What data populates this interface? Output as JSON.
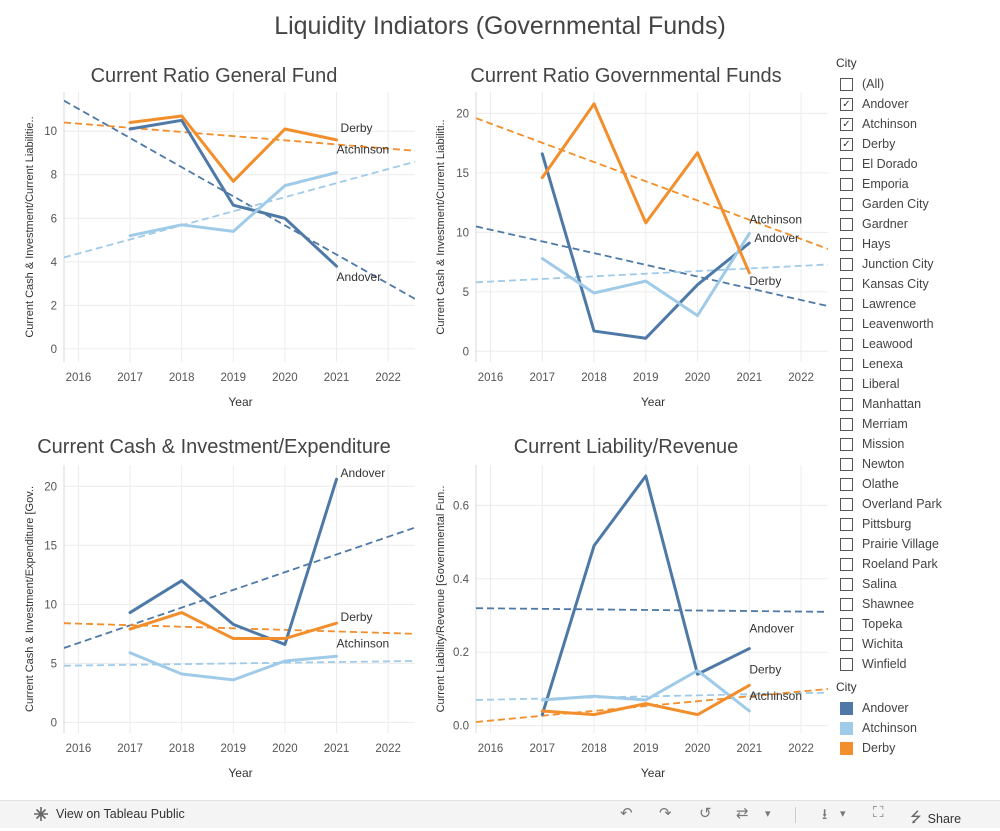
{
  "dashboard": {
    "title": "Liquidity Indiators (Governmental Funds)"
  },
  "colors": {
    "Andover": "#4e79a7",
    "Atchinson": "#a0cbe8",
    "Derby": "#f28e2b"
  },
  "chart_data": [
    {
      "type": "line",
      "title": "Current Ratio General Fund",
      "xlabel": "Year",
      "ylabel": "Current Cash & Investment/Current Liabilitie..",
      "x": [
        2017,
        2018,
        2019,
        2020,
        2021
      ],
      "xticks": [
        "2016",
        "2017",
        "2018",
        "2019",
        "2020",
        "2021",
        "2022"
      ],
      "yticks": [
        "0",
        "2",
        "4",
        "6",
        "8",
        "10"
      ],
      "ylim": [
        -0.6,
        11.8
      ],
      "series": [
        {
          "name": "Andover",
          "values": [
            10.1,
            10.5,
            6.6,
            6.0,
            3.8
          ],
          "trend": [
            11.4,
            2.3
          ]
        },
        {
          "name": "Atchinson",
          "values": [
            5.2,
            5.7,
            5.4,
            7.5,
            8.1
          ],
          "trend": [
            4.2,
            8.6
          ]
        },
        {
          "name": "Derby",
          "values": [
            10.4,
            10.7,
            7.7,
            10.1,
            9.6
          ],
          "trend": [
            10.4,
            9.1
          ]
        }
      ],
      "labels": [
        {
          "series": "Derby",
          "text": "Derby",
          "x": 2021,
          "y": 9.6,
          "dx": 4,
          "dy": -8
        },
        {
          "series": "Atchinson",
          "text": "Atchinson",
          "x": 2021,
          "y": 8.1,
          "dx": 0,
          "dy": -19
        },
        {
          "series": "Andover",
          "text": "Andover",
          "x": 2021,
          "y": 3.8,
          "dx": 0,
          "dy": 15
        }
      ]
    },
    {
      "type": "line",
      "title": "Current Ratio Governmental Funds",
      "xlabel": "Year",
      "ylabel": "Current Cash & Investment/Current Liabiliti..",
      "x": [
        2017,
        2018,
        2019,
        2020,
        2021
      ],
      "xticks": [
        "2016",
        "2017",
        "2018",
        "2019",
        "2020",
        "2021",
        "2022"
      ],
      "yticks": [
        "0",
        "5",
        "10",
        "15",
        "20"
      ],
      "ylim": [
        -0.9,
        21.8
      ],
      "series": [
        {
          "name": "Andover",
          "values": [
            16.6,
            1.7,
            1.1,
            5.6,
            9.1
          ],
          "trend": [
            10.5,
            3.8
          ]
        },
        {
          "name": "Atchinson",
          "values": [
            7.8,
            4.9,
            5.9,
            3.0,
            9.9
          ],
          "trend": [
            5.8,
            7.3
          ]
        },
        {
          "name": "Derby",
          "values": [
            14.6,
            20.8,
            10.8,
            16.7,
            6.6
          ],
          "trend": [
            19.6,
            8.6
          ]
        }
      ],
      "labels": [
        {
          "series": "Atchinson",
          "text": "Atchinson",
          "x": 2021,
          "y": 9.9,
          "dx": 0,
          "dy": -10
        },
        {
          "series": "Andover",
          "text": "Andover",
          "x": 2021,
          "y": 9.1,
          "dx": 5,
          "dy": -1
        },
        {
          "series": "Derby",
          "text": "Derby",
          "x": 2021,
          "y": 6.6,
          "dx": 0,
          "dy": 12
        }
      ]
    },
    {
      "type": "line",
      "title": "Current Cash & Investment/Expenditure",
      "xlabel": "Year",
      "ylabel": "Current Cash & Investment/Expenditure [Gov..",
      "x": [
        2017,
        2018,
        2019,
        2020,
        2021
      ],
      "xticks": [
        "2016",
        "2017",
        "2018",
        "2019",
        "2020",
        "2021",
        "2022"
      ],
      "yticks": [
        "0",
        "5",
        "10",
        "15",
        "20"
      ],
      "ylim": [
        -0.9,
        21.8
      ],
      "series": [
        {
          "name": "Andover",
          "values": [
            9.3,
            12.0,
            8.3,
            6.6,
            20.6
          ],
          "trend": [
            6.3,
            16.5
          ]
        },
        {
          "name": "Atchinson",
          "values": [
            5.9,
            4.1,
            3.6,
            5.2,
            5.6
          ],
          "trend": [
            4.8,
            5.2
          ]
        },
        {
          "name": "Derby",
          "values": [
            7.9,
            9.3,
            7.1,
            7.1,
            8.4
          ],
          "trend": [
            8.4,
            7.5
          ]
        }
      ],
      "labels": [
        {
          "series": "Andover",
          "text": "Andover",
          "x": 2021,
          "y": 20.6,
          "dx": 4,
          "dy": -2
        },
        {
          "series": "Derby",
          "text": "Derby",
          "x": 2021,
          "y": 8.4,
          "dx": 4,
          "dy": -2
        },
        {
          "series": "Atchinson",
          "text": "Atchinson",
          "x": 2021,
          "y": 5.6,
          "dx": 0,
          "dy": -9
        }
      ]
    },
    {
      "type": "line",
      "title": "Current Liability/Revenue",
      "xlabel": "Year",
      "ylabel": "Current Liability/Revenue [Governmental Fun..",
      "x": [
        2017,
        2018,
        2019,
        2020,
        2021
      ],
      "xticks": [
        "2016",
        "2017",
        "2018",
        "2019",
        "2020",
        "2021",
        "2022"
      ],
      "yticks": [
        "0.0",
        "0.2",
        "0.4",
        "0.6"
      ],
      "ylim": [
        -0.02,
        0.71
      ],
      "series": [
        {
          "name": "Andover",
          "values": [
            0.03,
            0.49,
            0.68,
            0.14,
            0.21
          ],
          "trend": [
            0.32,
            0.31
          ]
        },
        {
          "name": "Atchinson",
          "values": [
            0.07,
            0.08,
            0.07,
            0.15,
            0.04
          ],
          "trend": [
            0.07,
            0.09
          ]
        },
        {
          "name": "Derby",
          "values": [
            0.04,
            0.03,
            0.06,
            0.03,
            0.11
          ],
          "trend": [
            0.01,
            0.1
          ]
        }
      ],
      "labels": [
        {
          "series": "Andover",
          "text": "Andover",
          "x": 2021,
          "y": 0.21,
          "dx": 0,
          "dy": -16
        },
        {
          "series": "Derby",
          "text": "Derby",
          "x": 2021,
          "y": 0.11,
          "dx": 0,
          "dy": -12
        },
        {
          "series": "Atchinson",
          "text": "Atchinson",
          "x": 2021,
          "y": 0.04,
          "dx": 0,
          "dy": -11
        }
      ]
    }
  ],
  "sidebar": {
    "filter_title": "City",
    "filter_items": [
      {
        "label": "(All)",
        "checked": false
      },
      {
        "label": "Andover",
        "checked": true
      },
      {
        "label": "Atchinson",
        "checked": true
      },
      {
        "label": "Derby",
        "checked": true
      },
      {
        "label": "El Dorado",
        "checked": false
      },
      {
        "label": "Emporia",
        "checked": false
      },
      {
        "label": "Garden City",
        "checked": false
      },
      {
        "label": "Gardner",
        "checked": false
      },
      {
        "label": "Hays",
        "checked": false
      },
      {
        "label": "Junction City",
        "checked": false
      },
      {
        "label": "Kansas City",
        "checked": false
      },
      {
        "label": "Lawrence",
        "checked": false
      },
      {
        "label": "Leavenworth",
        "checked": false
      },
      {
        "label": "Leawood",
        "checked": false
      },
      {
        "label": "Lenexa",
        "checked": false
      },
      {
        "label": "Liberal",
        "checked": false
      },
      {
        "label": "Manhattan",
        "checked": false
      },
      {
        "label": "Merriam",
        "checked": false
      },
      {
        "label": "Mission",
        "checked": false
      },
      {
        "label": "Newton",
        "checked": false
      },
      {
        "label": "Olathe",
        "checked": false
      },
      {
        "label": "Overland Park",
        "checked": false
      },
      {
        "label": "Pittsburg",
        "checked": false
      },
      {
        "label": "Prairie Village",
        "checked": false
      },
      {
        "label": "Roeland Park",
        "checked": false
      },
      {
        "label": "Salina",
        "checked": false
      },
      {
        "label": "Shawnee",
        "checked": false
      },
      {
        "label": "Topeka",
        "checked": false
      },
      {
        "label": "Wichita",
        "checked": false
      },
      {
        "label": "Winfield",
        "checked": false
      }
    ],
    "legend_title": "City",
    "legend_items": [
      {
        "label": "Andover",
        "color": "#4e79a7"
      },
      {
        "label": "Atchinson",
        "color": "#a0cbe8"
      },
      {
        "label": "Derby",
        "color": "#f28e2b"
      }
    ]
  },
  "footer": {
    "view_label": "View on Tableau Public",
    "share_label": "Share"
  }
}
